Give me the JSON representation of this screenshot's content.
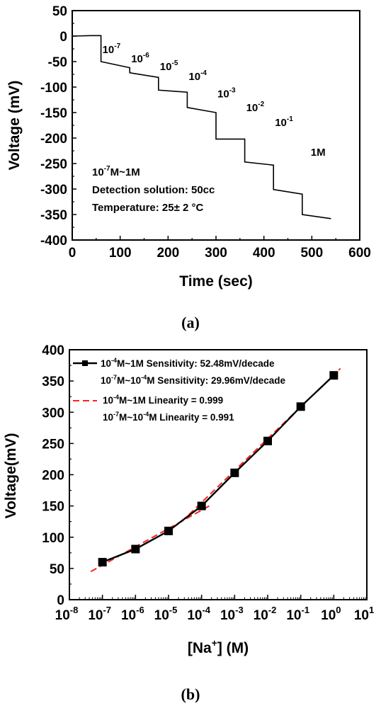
{
  "chart_data": [
    {
      "type": "line",
      "panel": "(a)",
      "xlabel": "Time (sec)",
      "ylabel": "Voltage (mV)",
      "xlim": [
        0,
        600
      ],
      "ylim": [
        -400,
        50
      ],
      "xticks": [
        "0",
        "100",
        "200",
        "300",
        "400",
        "500",
        "600"
      ],
      "yticks": [
        "50",
        "0",
        "-50",
        "-100",
        "-150",
        "-200",
        "-250",
        "-300",
        "-350",
        "-400"
      ],
      "x": [
        0,
        40,
        60,
        60,
        120,
        120,
        180,
        180,
        240,
        240,
        300,
        300,
        360,
        360,
        420,
        420,
        480,
        480,
        540
      ],
      "y": [
        0,
        1,
        1,
        -50,
        -62,
        -72,
        -81,
        -106,
        -110,
        -140,
        -150,
        -202,
        -202,
        -247,
        -253,
        -301,
        -310,
        -350,
        -358
      ],
      "step_labels": [
        {
          "base": "10",
          "exp": "-7"
        },
        {
          "base": "10",
          "exp": "-6"
        },
        {
          "base": "10",
          "exp": "-5"
        },
        {
          "base": "10",
          "exp": "-4"
        },
        {
          "base": "10",
          "exp": "-3"
        },
        {
          "base": "10",
          "exp": "-2"
        },
        {
          "base": "10",
          "exp": "-1"
        },
        {
          "base": "1M",
          "exp": ""
        }
      ],
      "annotation": {
        "range_base": "10",
        "range_exp": "-7",
        "range_rest": "M~1M",
        "line2": "Detection solution: 50cc",
        "line3": "Temperature: 25± 2 °C"
      }
    },
    {
      "type": "line",
      "panel": "(b)",
      "xlabel_pre": "[Na",
      "xlabel_sup": "+",
      "xlabel_post": "] (M)",
      "ylabel": "Voltage(mV)",
      "xscale": "log",
      "xlim_exp": [
        -8,
        1
      ],
      "ylim": [
        0,
        400
      ],
      "xtick_exps": [
        "-8",
        "-7",
        "-6",
        "-5",
        "-4",
        "-3",
        "-2",
        "-1",
        "0",
        "1"
      ],
      "xtick_base": "10",
      "yticks": [
        "0",
        "50",
        "100",
        "150",
        "200",
        "250",
        "300",
        "350",
        "400"
      ],
      "series": [
        {
          "name": "10^-4M~1M Sensitivity: 52.48mV/decade",
          "x_exp": [
            -7,
            -6,
            -5,
            -4,
            -3,
            -2,
            -1,
            0
          ],
          "y": [
            60,
            81,
            110,
            150,
            203,
            254,
            309,
            359
          ]
        }
      ],
      "fits": [
        {
          "x_exp": [
            -4.6,
            0.2
          ],
          "y": [
            125,
            370
          ]
        },
        {
          "x_exp": [
            -7.35,
            -3.7
          ],
          "y": [
            45,
            152
          ]
        }
      ],
      "legend": {
        "r1_a": "10",
        "r1_b": "-4",
        "r1_c": "M~1M Sensitivity: 52.48mV/decade",
        "r2_a": "10",
        "r2_b": "-7",
        "r2_c": "M~10",
        "r2_d": "-4",
        "r2_e": "M Sensitivity: 29.96mV/decade",
        "r3_a": "10",
        "r3_b": "-4",
        "r3_c": "M~1M Linearity = 0.999",
        "r4_a": "10",
        "r4_b": "-7",
        "r4_c": "M~10",
        "r4_d": "-4",
        "r4_e": "M Linearity = 0.991"
      }
    }
  ]
}
